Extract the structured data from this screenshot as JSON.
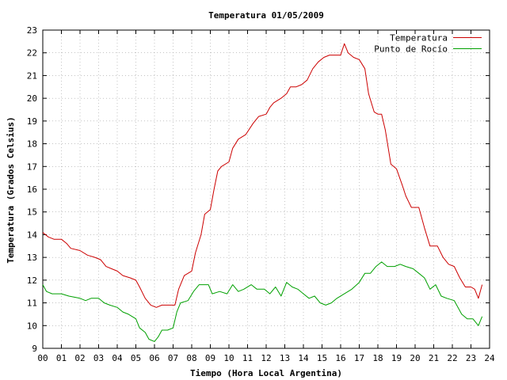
{
  "chart_data": {
    "type": "line",
    "title": "Temperatura 01/05/2009",
    "xlabel": "Tiempo (Hora Local Argentina)",
    "ylabel": "Temperatura (Grados Celsius)",
    "xlim": [
      0,
      24
    ],
    "ylim": [
      9,
      23
    ],
    "x_ticks": [
      "00",
      "01",
      "02",
      "03",
      "04",
      "05",
      "06",
      "07",
      "08",
      "09",
      "10",
      "11",
      "12",
      "13",
      "14",
      "15",
      "16",
      "17",
      "18",
      "19",
      "20",
      "21",
      "22",
      "23",
      "24"
    ],
    "y_ticks": [
      "9",
      "10",
      "11",
      "12",
      "13",
      "14",
      "15",
      "16",
      "17",
      "18",
      "19",
      "20",
      "21",
      "22",
      "23"
    ],
    "grid": true,
    "legend_position": "top-right",
    "series": [
      {
        "name": "Temperatura",
        "color": "#cc0000",
        "points": [
          [
            0.0,
            14.1
          ],
          [
            0.3,
            13.9
          ],
          [
            0.6,
            13.8
          ],
          [
            1.0,
            13.8
          ],
          [
            1.3,
            13.6
          ],
          [
            1.5,
            13.4
          ],
          [
            2.0,
            13.3
          ],
          [
            2.4,
            13.1
          ],
          [
            2.8,
            13.0
          ],
          [
            3.1,
            12.9
          ],
          [
            3.4,
            12.6
          ],
          [
            3.7,
            12.5
          ],
          [
            4.0,
            12.4
          ],
          [
            4.3,
            12.2
          ],
          [
            4.7,
            12.1
          ],
          [
            5.0,
            12.0
          ],
          [
            5.2,
            11.7
          ],
          [
            5.5,
            11.2
          ],
          [
            5.8,
            10.9
          ],
          [
            6.1,
            10.8
          ],
          [
            6.4,
            10.9
          ],
          [
            6.8,
            10.9
          ],
          [
            7.1,
            10.9
          ],
          [
            7.3,
            11.6
          ],
          [
            7.6,
            12.2
          ],
          [
            8.0,
            12.4
          ],
          [
            8.2,
            13.2
          ],
          [
            8.5,
            14.0
          ],
          [
            8.7,
            14.9
          ],
          [
            9.0,
            15.1
          ],
          [
            9.2,
            16.0
          ],
          [
            9.4,
            16.8
          ],
          [
            9.6,
            17.0
          ],
          [
            10.0,
            17.2
          ],
          [
            10.2,
            17.8
          ],
          [
            10.5,
            18.2
          ],
          [
            10.9,
            18.4
          ],
          [
            11.3,
            18.9
          ],
          [
            11.6,
            19.2
          ],
          [
            12.0,
            19.3
          ],
          [
            12.2,
            19.6
          ],
          [
            12.4,
            19.8
          ],
          [
            12.8,
            20.0
          ],
          [
            13.1,
            20.2
          ],
          [
            13.3,
            20.5
          ],
          [
            13.6,
            20.5
          ],
          [
            13.9,
            20.6
          ],
          [
            14.2,
            20.8
          ],
          [
            14.5,
            21.3
          ],
          [
            14.8,
            21.6
          ],
          [
            15.1,
            21.8
          ],
          [
            15.4,
            21.9
          ],
          [
            15.7,
            21.9
          ],
          [
            16.0,
            21.9
          ],
          [
            16.2,
            22.4
          ],
          [
            16.4,
            22.0
          ],
          [
            16.7,
            21.8
          ],
          [
            17.0,
            21.7
          ],
          [
            17.3,
            21.3
          ],
          [
            17.5,
            20.2
          ],
          [
            17.8,
            19.4
          ],
          [
            18.0,
            19.3
          ],
          [
            18.2,
            19.3
          ],
          [
            18.4,
            18.6
          ],
          [
            18.7,
            17.1
          ],
          [
            19.0,
            16.9
          ],
          [
            19.3,
            16.2
          ],
          [
            19.5,
            15.7
          ],
          [
            19.8,
            15.2
          ],
          [
            20.2,
            15.2
          ],
          [
            20.5,
            14.3
          ],
          [
            20.8,
            13.5
          ],
          [
            21.2,
            13.5
          ],
          [
            21.5,
            13.0
          ],
          [
            21.8,
            12.7
          ],
          [
            22.1,
            12.6
          ],
          [
            22.4,
            12.1
          ],
          [
            22.7,
            11.7
          ],
          [
            23.0,
            11.7
          ],
          [
            23.2,
            11.6
          ],
          [
            23.4,
            11.2
          ],
          [
            23.6,
            11.8
          ]
        ]
      },
      {
        "name": "Punto de Rocío",
        "color": "#00a000",
        "points": [
          [
            0.0,
            11.8
          ],
          [
            0.2,
            11.5
          ],
          [
            0.5,
            11.4
          ],
          [
            1.0,
            11.4
          ],
          [
            1.4,
            11.3
          ],
          [
            2.0,
            11.2
          ],
          [
            2.3,
            11.1
          ],
          [
            2.6,
            11.2
          ],
          [
            3.0,
            11.2
          ],
          [
            3.3,
            11.0
          ],
          [
            3.6,
            10.9
          ],
          [
            4.0,
            10.8
          ],
          [
            4.3,
            10.6
          ],
          [
            4.6,
            10.5
          ],
          [
            5.0,
            10.3
          ],
          [
            5.2,
            9.9
          ],
          [
            5.5,
            9.7
          ],
          [
            5.7,
            9.4
          ],
          [
            6.0,
            9.3
          ],
          [
            6.2,
            9.5
          ],
          [
            6.4,
            9.8
          ],
          [
            6.7,
            9.8
          ],
          [
            7.0,
            9.9
          ],
          [
            7.2,
            10.6
          ],
          [
            7.4,
            11.0
          ],
          [
            7.8,
            11.1
          ],
          [
            8.1,
            11.5
          ],
          [
            8.4,
            11.8
          ],
          [
            8.9,
            11.8
          ],
          [
            9.1,
            11.4
          ],
          [
            9.5,
            11.5
          ],
          [
            9.9,
            11.4
          ],
          [
            10.2,
            11.8
          ],
          [
            10.5,
            11.5
          ],
          [
            10.8,
            11.6
          ],
          [
            11.2,
            11.8
          ],
          [
            11.5,
            11.6
          ],
          [
            11.9,
            11.6
          ],
          [
            12.2,
            11.4
          ],
          [
            12.5,
            11.7
          ],
          [
            12.8,
            11.3
          ],
          [
            13.1,
            11.9
          ],
          [
            13.4,
            11.7
          ],
          [
            13.7,
            11.6
          ],
          [
            14.0,
            11.4
          ],
          [
            14.3,
            11.2
          ],
          [
            14.6,
            11.3
          ],
          [
            14.9,
            11.0
          ],
          [
            15.2,
            10.9
          ],
          [
            15.5,
            11.0
          ],
          [
            15.8,
            11.2
          ],
          [
            16.2,
            11.4
          ],
          [
            16.6,
            11.6
          ],
          [
            17.0,
            11.9
          ],
          [
            17.3,
            12.3
          ],
          [
            17.6,
            12.3
          ],
          [
            17.9,
            12.6
          ],
          [
            18.2,
            12.8
          ],
          [
            18.5,
            12.6
          ],
          [
            18.9,
            12.6
          ],
          [
            19.2,
            12.7
          ],
          [
            19.5,
            12.6
          ],
          [
            19.9,
            12.5
          ],
          [
            20.2,
            12.3
          ],
          [
            20.5,
            12.1
          ],
          [
            20.8,
            11.6
          ],
          [
            21.1,
            11.8
          ],
          [
            21.4,
            11.3
          ],
          [
            21.7,
            11.2
          ],
          [
            22.1,
            11.1
          ],
          [
            22.5,
            10.5
          ],
          [
            22.8,
            10.3
          ],
          [
            23.1,
            10.3
          ],
          [
            23.4,
            10.0
          ],
          [
            23.6,
            10.4
          ]
        ]
      }
    ]
  }
}
